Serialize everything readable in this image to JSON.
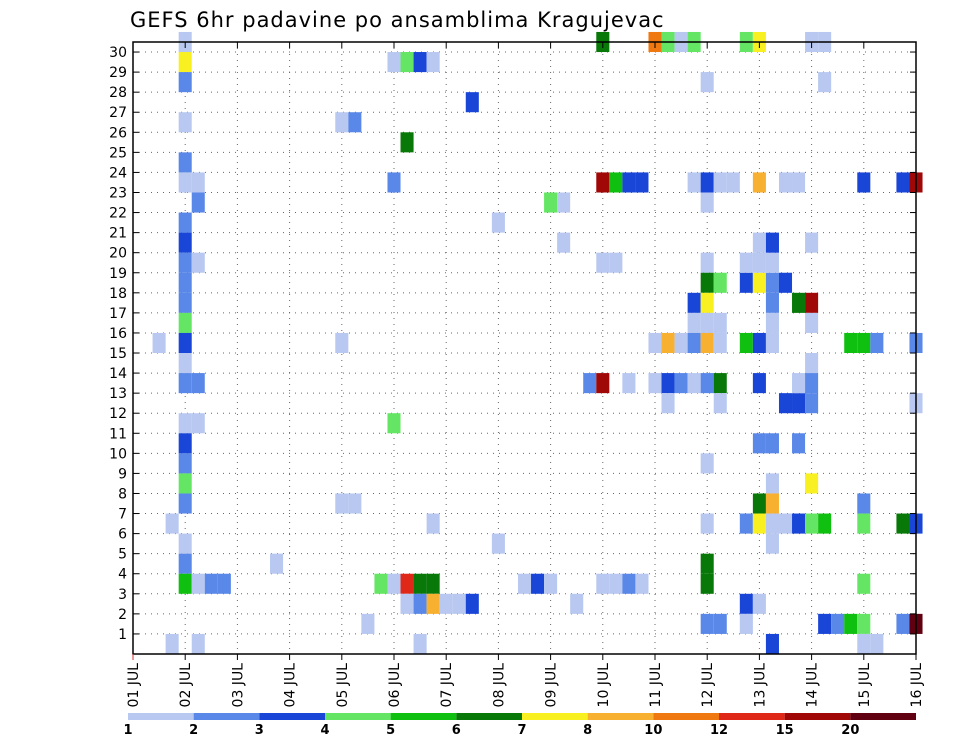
{
  "chart_data": {
    "type": "heatmap",
    "title": "GEFS 6hr padavine po ansamblima Kragujevac",
    "x_tick_labels": [
      "01 JUL",
      "02 JUL",
      "03 JUL",
      "04 JUL",
      "05 JUL",
      "06 JUL",
      "07 JUL",
      "08 JUL",
      "09 JUL",
      "10 JUL",
      "11 JUL",
      "12 JUL",
      "13 JUL",
      "14 JUL",
      "15 JUL",
      "16 JUL"
    ],
    "y_tick_labels": [
      "1",
      "2",
      "3",
      "4",
      "5",
      "6",
      "7",
      "8",
      "9",
      "10",
      "11",
      "12",
      "13",
      "14",
      "15",
      "16",
      "17",
      "18",
      "19",
      "20",
      "21",
      "22",
      "23",
      "24",
      "25",
      "26",
      "27",
      "28",
      "29",
      "30"
    ],
    "x_unit": "day of month (July), 6-hour steps",
    "xlim": [
      1,
      16
    ],
    "ylim": [
      0,
      30
    ],
    "grid": true,
    "legend": {
      "placement": "bottom",
      "labels": [
        "1",
        "2",
        "3",
        "4",
        "5",
        "6",
        "7",
        "8",
        "10",
        "12",
        "15",
        "20"
      ],
      "colors": [
        "#b8c8f0",
        "#5a88e8",
        "#1a46d8",
        "#64e664",
        "#10c010",
        "#087808",
        "#f8f020",
        "#f8b030",
        "#f07810",
        "#e02818",
        "#a00808",
        "#600010"
      ]
    },
    "cells": [
      {
        "day": 1.75,
        "member": 0,
        "level": 0
      },
      {
        "day": 1.5,
        "member": 15,
        "level": 0
      },
      {
        "day": 2.0,
        "member": 30,
        "level": 0
      },
      {
        "day": 2.0,
        "member": 29,
        "level": 6
      },
      {
        "day": 2.0,
        "member": 28,
        "level": 1
      },
      {
        "day": 2.0,
        "member": 26,
        "level": 0
      },
      {
        "day": 2.0,
        "member": 24,
        "level": 1
      },
      {
        "day": 2.0,
        "member": 23,
        "level": 0
      },
      {
        "day": 2.25,
        "member": 23,
        "level": 0
      },
      {
        "day": 2.25,
        "member": 22,
        "level": 1
      },
      {
        "day": 2.0,
        "member": 21,
        "level": 1
      },
      {
        "day": 2.0,
        "member": 20,
        "level": 2
      },
      {
        "day": 2.0,
        "member": 19,
        "level": 1
      },
      {
        "day": 2.25,
        "member": 19,
        "level": 0
      },
      {
        "day": 2.0,
        "member": 18,
        "level": 1
      },
      {
        "day": 2.0,
        "member": 17,
        "level": 1
      },
      {
        "day": 2.0,
        "member": 16,
        "level": 3
      },
      {
        "day": 2.0,
        "member": 15,
        "level": 2
      },
      {
        "day": 2.0,
        "member": 14,
        "level": 0
      },
      {
        "day": 2.0,
        "member": 13,
        "level": 1
      },
      {
        "day": 2.25,
        "member": 13,
        "level": 1
      },
      {
        "day": 2.0,
        "member": 11,
        "level": 0
      },
      {
        "day": 2.25,
        "member": 11,
        "level": 0
      },
      {
        "day": 2.0,
        "member": 10,
        "level": 2
      },
      {
        "day": 2.0,
        "member": 9,
        "level": 1
      },
      {
        "day": 2.0,
        "member": 8,
        "level": 3
      },
      {
        "day": 2.0,
        "member": 7,
        "level": 1
      },
      {
        "day": 1.75,
        "member": 6,
        "level": 0
      },
      {
        "day": 2.0,
        "member": 5,
        "level": 0
      },
      {
        "day": 2.0,
        "member": 4,
        "level": 1
      },
      {
        "day": 2.0,
        "member": 3,
        "level": 4
      },
      {
        "day": 2.25,
        "member": 3,
        "level": 0
      },
      {
        "day": 2.5,
        "member": 3,
        "level": 1
      },
      {
        "day": 2.75,
        "member": 3,
        "level": 1
      },
      {
        "day": 2.25,
        "member": 0,
        "level": 0
      },
      {
        "day": 3.75,
        "member": 4,
        "level": 0
      },
      {
        "day": 5.0,
        "member": 26,
        "level": 0
      },
      {
        "day": 5.25,
        "member": 26,
        "level": 1
      },
      {
        "day": 5.0,
        "member": 15,
        "level": 0
      },
      {
        "day": 5.0,
        "member": 7,
        "level": 0
      },
      {
        "day": 5.25,
        "member": 7,
        "level": 0
      },
      {
        "day": 5.5,
        "member": 1,
        "level": 0
      },
      {
        "day": 5.75,
        "member": 3,
        "level": 3
      },
      {
        "day": 6.0,
        "member": 3,
        "level": 0
      },
      {
        "day": 6.25,
        "member": 3,
        "level": 9
      },
      {
        "day": 6.5,
        "member": 3,
        "level": 5
      },
      {
        "day": 6.75,
        "member": 3,
        "level": 5
      },
      {
        "day": 6.0,
        "member": 29,
        "level": 0
      },
      {
        "day": 6.25,
        "member": 29,
        "level": 3
      },
      {
        "day": 6.5,
        "member": 29,
        "level": 2
      },
      {
        "day": 6.75,
        "member": 29,
        "level": 0
      },
      {
        "day": 6.25,
        "member": 25,
        "level": 5
      },
      {
        "day": 6.0,
        "member": 23,
        "level": 1
      },
      {
        "day": 6.0,
        "member": 11,
        "level": 3
      },
      {
        "day": 6.75,
        "member": 6,
        "level": 0
      },
      {
        "day": 6.25,
        "member": 2,
        "level": 0
      },
      {
        "day": 6.5,
        "member": 2,
        "level": 1
      },
      {
        "day": 6.75,
        "member": 2,
        "level": 7
      },
      {
        "day": 6.5,
        "member": 0,
        "level": 0
      },
      {
        "day": 7.0,
        "member": 2,
        "level": 0
      },
      {
        "day": 7.25,
        "member": 2,
        "level": 0
      },
      {
        "day": 7.5,
        "member": 2,
        "level": 2
      },
      {
        "day": 7.5,
        "member": 27,
        "level": 2
      },
      {
        "day": 8.0,
        "member": 21,
        "level": 0
      },
      {
        "day": 8.0,
        "member": 5,
        "level": 0
      },
      {
        "day": 8.5,
        "member": 3,
        "level": 0
      },
      {
        "day": 8.75,
        "member": 3,
        "level": 2
      },
      {
        "day": 9.0,
        "member": 3,
        "level": 0
      },
      {
        "day": 9.0,
        "member": 22,
        "level": 3
      },
      {
        "day": 9.25,
        "member": 22,
        "level": 0
      },
      {
        "day": 9.25,
        "member": 20,
        "level": 0
      },
      {
        "day": 9.5,
        "member": 2,
        "level": 0
      },
      {
        "day": 9.75,
        "member": 13,
        "level": 1
      },
      {
        "day": 10.0,
        "member": 13,
        "level": 10
      },
      {
        "day": 10.0,
        "member": 30,
        "level": 5
      },
      {
        "day": 10.0,
        "member": 23,
        "level": 10
      },
      {
        "day": 10.25,
        "member": 23,
        "level": 4
      },
      {
        "day": 10.5,
        "member": 23,
        "level": 2
      },
      {
        "day": 10.75,
        "member": 23,
        "level": 2
      },
      {
        "day": 10.0,
        "member": 19,
        "level": 0
      },
      {
        "day": 10.25,
        "member": 19,
        "level": 0
      },
      {
        "day": 10.0,
        "member": 3,
        "level": 0
      },
      {
        "day": 10.25,
        "member": 3,
        "level": 0
      },
      {
        "day": 10.5,
        "member": 3,
        "level": 1
      },
      {
        "day": 10.75,
        "member": 3,
        "level": 0
      },
      {
        "day": 10.5,
        "member": 13,
        "level": 0
      },
      {
        "day": 11.0,
        "member": 30,
        "level": 8
      },
      {
        "day": 11.25,
        "member": 30,
        "level": 3
      },
      {
        "day": 11.5,
        "member": 30,
        "level": 0
      },
      {
        "day": 11.75,
        "member": 30,
        "level": 3
      },
      {
        "day": 11.0,
        "member": 15,
        "level": 0
      },
      {
        "day": 11.25,
        "member": 15,
        "level": 7
      },
      {
        "day": 11.5,
        "member": 15,
        "level": 0
      },
      {
        "day": 11.0,
        "member": 13,
        "level": 0
      },
      {
        "day": 11.25,
        "member": 13,
        "level": 2
      },
      {
        "day": 11.5,
        "member": 13,
        "level": 1
      },
      {
        "day": 11.25,
        "member": 12,
        "level": 0
      },
      {
        "day": 11.75,
        "member": 23,
        "level": 0
      },
      {
        "day": 12.0,
        "member": 23,
        "level": 2
      },
      {
        "day": 12.25,
        "member": 23,
        "level": 0
      },
      {
        "day": 12.5,
        "member": 23,
        "level": 0
      },
      {
        "day": 12.0,
        "member": 22,
        "level": 0
      },
      {
        "day": 12.0,
        "member": 28,
        "level": 0
      },
      {
        "day": 12.0,
        "member": 19,
        "level": 0
      },
      {
        "day": 12.0,
        "member": 18,
        "level": 5
      },
      {
        "day": 12.25,
        "member": 18,
        "level": 3
      },
      {
        "day": 11.75,
        "member": 17,
        "level": 2
      },
      {
        "day": 12.0,
        "member": 17,
        "level": 6
      },
      {
        "day": 11.75,
        "member": 16,
        "level": 0
      },
      {
        "day": 12.0,
        "member": 16,
        "level": 0
      },
      {
        "day": 12.25,
        "member": 16,
        "level": 0
      },
      {
        "day": 11.75,
        "member": 15,
        "level": 1
      },
      {
        "day": 12.0,
        "member": 15,
        "level": 7
      },
      {
        "day": 12.25,
        "member": 15,
        "level": 0
      },
      {
        "day": 11.75,
        "member": 13,
        "level": 0
      },
      {
        "day": 12.0,
        "member": 13,
        "level": 1
      },
      {
        "day": 12.25,
        "member": 13,
        "level": 5
      },
      {
        "day": 12.25,
        "member": 12,
        "level": 0
      },
      {
        "day": 12.0,
        "member": 9,
        "level": 0
      },
      {
        "day": 12.0,
        "member": 6,
        "level": 0
      },
      {
        "day": 12.0,
        "member": 4,
        "level": 5
      },
      {
        "day": 12.0,
        "member": 3,
        "level": 5
      },
      {
        "day": 12.0,
        "member": 1,
        "level": 1
      },
      {
        "day": 12.25,
        "member": 1,
        "level": 1
      },
      {
        "day": 12.75,
        "member": 30,
        "level": 3
      },
      {
        "day": 13.0,
        "member": 30,
        "level": 6
      },
      {
        "day": 13.0,
        "member": 23,
        "level": 7
      },
      {
        "day": 12.75,
        "member": 15,
        "level": 4
      },
      {
        "day": 13.0,
        "member": 15,
        "level": 2
      },
      {
        "day": 13.25,
        "member": 15,
        "level": 0
      },
      {
        "day": 12.75,
        "member": 18,
        "level": 2
      },
      {
        "day": 13.0,
        "member": 18,
        "level": 6
      },
      {
        "day": 13.25,
        "member": 18,
        "level": 1
      },
      {
        "day": 13.5,
        "member": 18,
        "level": 2
      },
      {
        "day": 12.75,
        "member": 19,
        "level": 0
      },
      {
        "day": 13.0,
        "member": 19,
        "level": 0
      },
      {
        "day": 13.25,
        "member": 19,
        "level": 0
      },
      {
        "day": 13.0,
        "member": 20,
        "level": 0
      },
      {
        "day": 13.25,
        "member": 20,
        "level": 2
      },
      {
        "day": 13.25,
        "member": 17,
        "level": 1
      },
      {
        "day": 13.25,
        "member": 16,
        "level": 0
      },
      {
        "day": 13.0,
        "member": 13,
        "level": 2
      },
      {
        "day": 13.5,
        "member": 12,
        "level": 2
      },
      {
        "day": 13.75,
        "member": 12,
        "level": 2
      },
      {
        "day": 14.0,
        "member": 12,
        "level": 1
      },
      {
        "day": 13.0,
        "member": 10,
        "level": 1
      },
      {
        "day": 13.25,
        "member": 10,
        "level": 1
      },
      {
        "day": 13.25,
        "member": 8,
        "level": 0
      },
      {
        "day": 13.0,
        "member": 7,
        "level": 5
      },
      {
        "day": 13.25,
        "member": 7,
        "level": 7
      },
      {
        "day": 12.75,
        "member": 6,
        "level": 1
      },
      {
        "day": 13.0,
        "member": 6,
        "level": 6
      },
      {
        "day": 13.25,
        "member": 6,
        "level": 0
      },
      {
        "day": 13.5,
        "member": 6,
        "level": 0
      },
      {
        "day": 13.25,
        "member": 5,
        "level": 0
      },
      {
        "day": 12.75,
        "member": 2,
        "level": 2
      },
      {
        "day": 13.0,
        "member": 2,
        "level": 0
      },
      {
        "day": 12.75,
        "member": 1,
        "level": 0
      },
      {
        "day": 13.25,
        "member": 0,
        "level": 2
      },
      {
        "day": 13.5,
        "member": 23,
        "level": 0
      },
      {
        "day": 13.75,
        "member": 23,
        "level": 0
      },
      {
        "day": 13.75,
        "member": 17,
        "level": 5
      },
      {
        "day": 14.0,
        "member": 17,
        "level": 10
      },
      {
        "day": 13.75,
        "member": 13,
        "level": 0
      },
      {
        "day": 14.0,
        "member": 14,
        "level": 0
      },
      {
        "day": 14.0,
        "member": 13,
        "level": 1
      },
      {
        "day": 13.75,
        "member": 10,
        "level": 1
      },
      {
        "day": 14.0,
        "member": 8,
        "level": 6
      },
      {
        "day": 13.75,
        "member": 6,
        "level": 2
      },
      {
        "day": 14.0,
        "member": 6,
        "level": 3
      },
      {
        "day": 14.25,
        "member": 6,
        "level": 4
      },
      {
        "day": 14.0,
        "member": 30,
        "level": 0
      },
      {
        "day": 14.25,
        "member": 30,
        "level": 0
      },
      {
        "day": 14.25,
        "member": 28,
        "level": 0
      },
      {
        "day": 14.0,
        "member": 20,
        "level": 0
      },
      {
        "day": 14.0,
        "member": 16,
        "level": 0
      },
      {
        "day": 14.25,
        "member": 1,
        "level": 2
      },
      {
        "day": 14.5,
        "member": 1,
        "level": 1
      },
      {
        "day": 14.75,
        "member": 1,
        "level": 4
      },
      {
        "day": 15.0,
        "member": 1,
        "level": 3
      },
      {
        "day": 15.0,
        "member": 0,
        "level": 0
      },
      {
        "day": 15.25,
        "member": 0,
        "level": 0
      },
      {
        "day": 14.75,
        "member": 15,
        "level": 4
      },
      {
        "day": 15.0,
        "member": 15,
        "level": 4
      },
      {
        "day": 15.25,
        "member": 15,
        "level": 1
      },
      {
        "day": 15.0,
        "member": 23,
        "level": 2
      },
      {
        "day": 15.0,
        "member": 7,
        "level": 1
      },
      {
        "day": 15.0,
        "member": 6,
        "level": 3
      },
      {
        "day": 15.0,
        "member": 3,
        "level": 3
      },
      {
        "day": 15.75,
        "member": 23,
        "level": 2
      },
      {
        "day": 16.0,
        "member": 23,
        "level": 10
      },
      {
        "day": 15.75,
        "member": 6,
        "level": 5
      },
      {
        "day": 16.0,
        "member": 6,
        "level": 2
      },
      {
        "day": 16.0,
        "member": 15,
        "level": 1
      },
      {
        "day": 16.0,
        "member": 12,
        "level": 0
      },
      {
        "day": 15.75,
        "member": 1,
        "level": 1
      },
      {
        "day": 16.0,
        "member": 1,
        "level": 11
      }
    ]
  }
}
